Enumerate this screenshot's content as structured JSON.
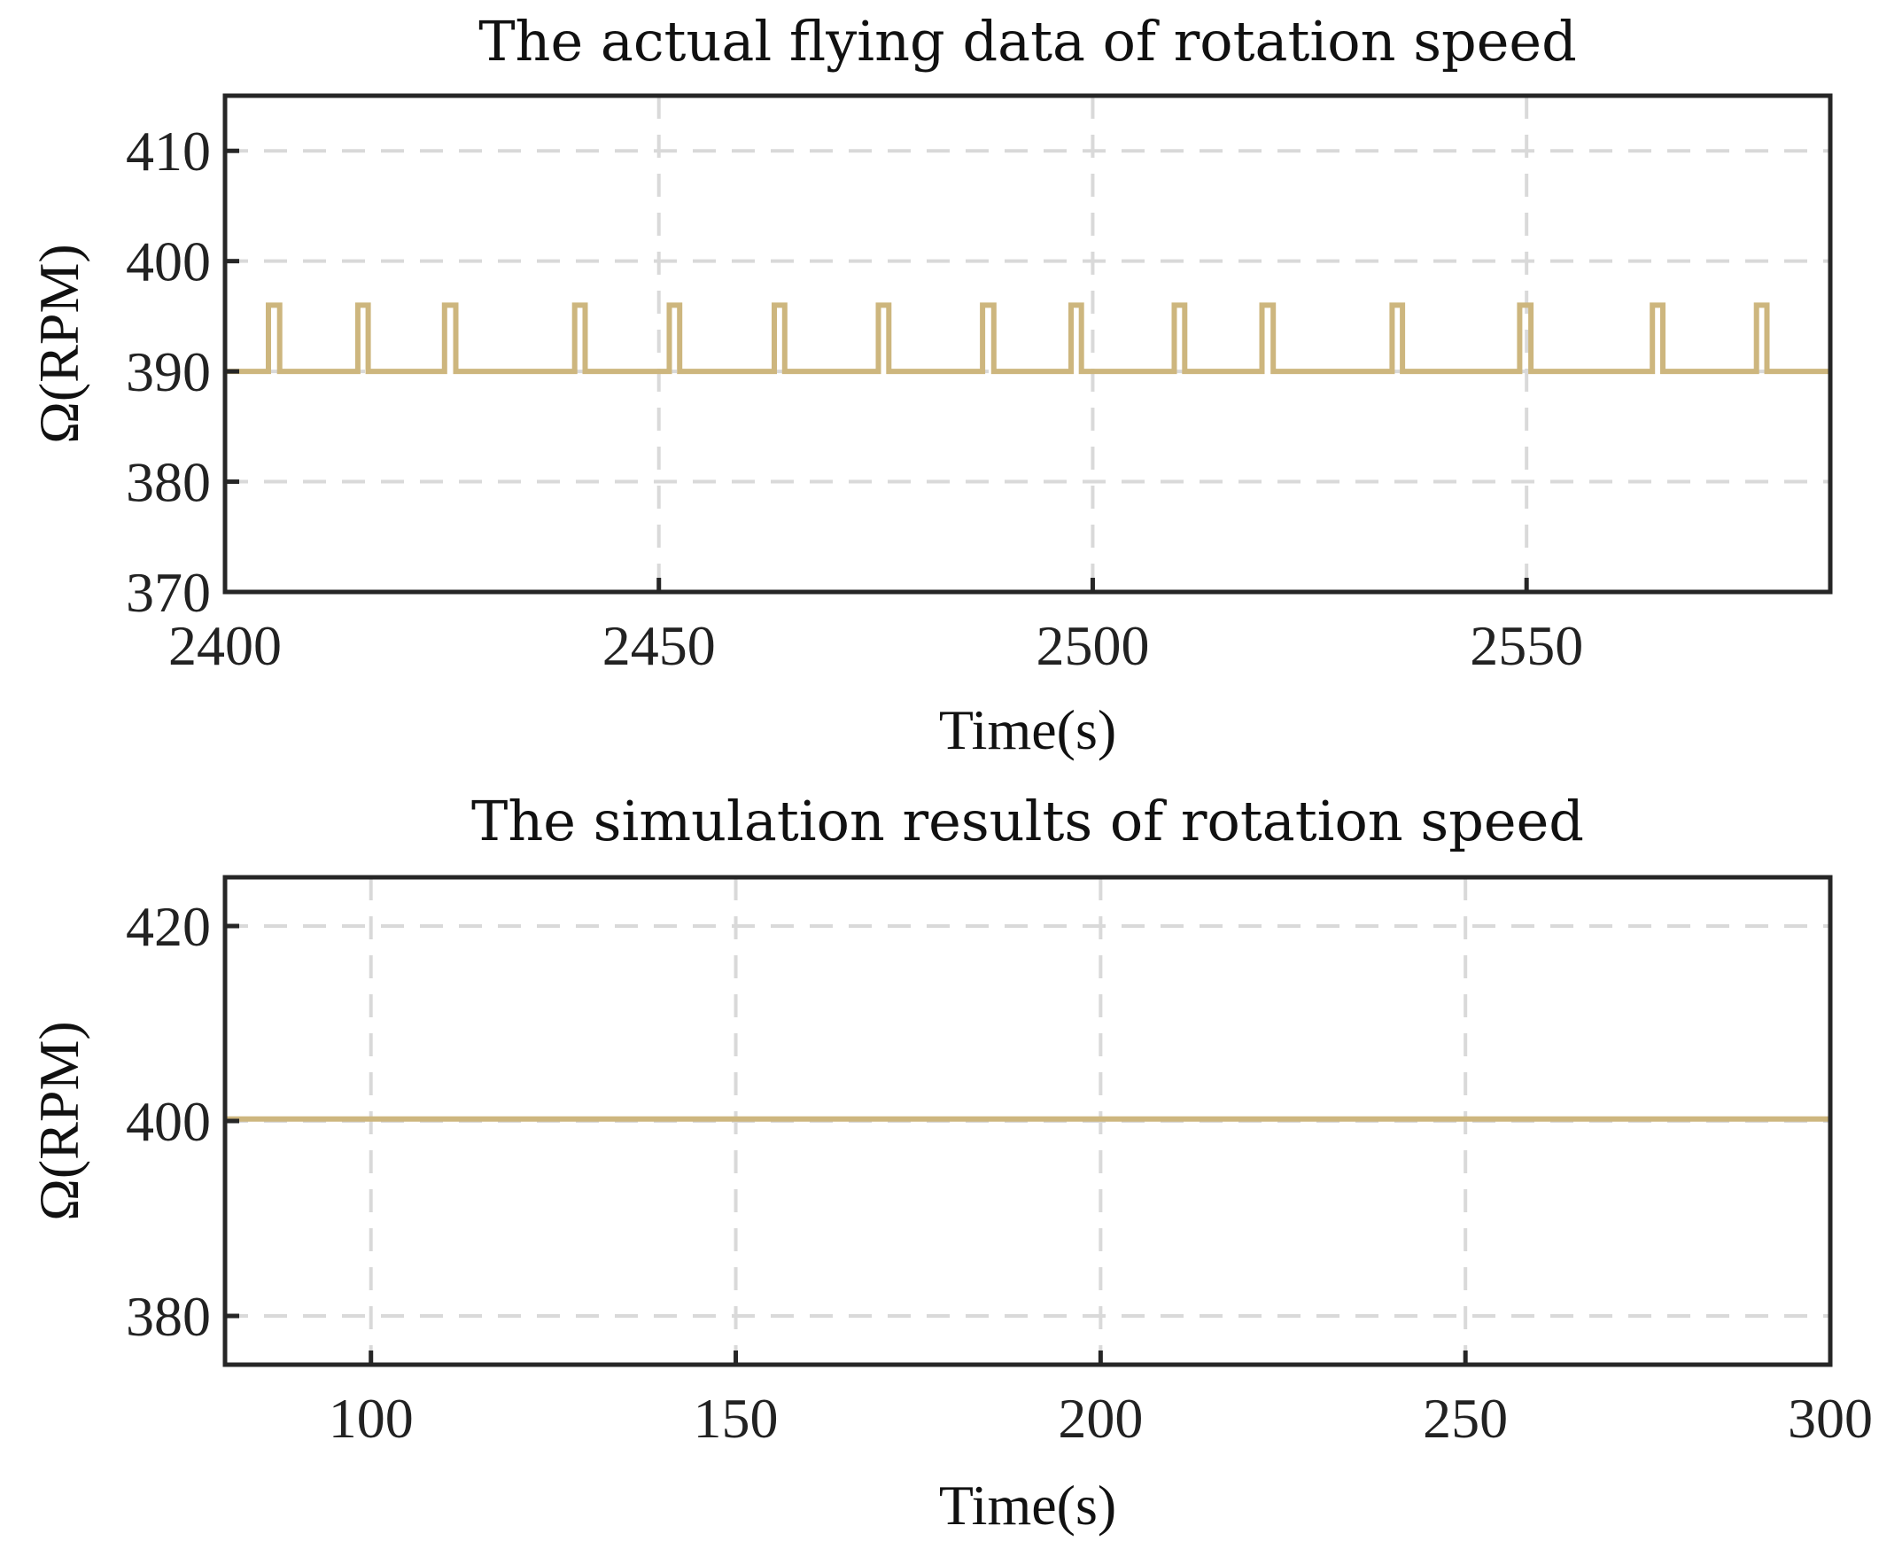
{
  "series_color": "#CDB67E",
  "chart_data": [
    {
      "type": "line",
      "title": "The actual flying data of rotation speed",
      "xlabel": "Time(s)",
      "ylabel": "Ω(RPM)",
      "xlim": [
        2400,
        2585
      ],
      "ylim": [
        370,
        415
      ],
      "xticks": [
        2400,
        2450,
        2500,
        2550
      ],
      "yticks": [
        370,
        380,
        390,
        400,
        410
      ],
      "grid": true,
      "series": [
        {
          "name": "rotation speed",
          "baseline": 390,
          "peak": 396,
          "pulses": [
            [
              2405.0,
              2406.3
            ],
            [
              2415.3,
              2416.5
            ],
            [
              2425.3,
              2426.6
            ],
            [
              2440.3,
              2441.5
            ],
            [
              2451.2,
              2452.4
            ],
            [
              2463.3,
              2464.5
            ],
            [
              2475.3,
              2476.5
            ],
            [
              2487.3,
              2488.6
            ],
            [
              2497.5,
              2498.7
            ],
            [
              2509.4,
              2510.6
            ],
            [
              2519.5,
              2520.8
            ],
            [
              2534.5,
              2535.7
            ],
            [
              2549.2,
              2550.5
            ],
            [
              2564.5,
              2565.7
            ],
            [
              2576.5,
              2577.7
            ]
          ]
        }
      ]
    },
    {
      "type": "line",
      "title": "The simulation results of rotation speed",
      "xlabel": "Time(s)",
      "ylabel": "Ω(RPM)",
      "xlim": [
        80,
        300
      ],
      "ylim": [
        375,
        425
      ],
      "xticks": [
        100,
        150,
        200,
        250,
        300
      ],
      "yticks": [
        380,
        400,
        420
      ],
      "grid": true,
      "series": [
        {
          "name": "rotation speed",
          "x": [
            80,
            300
          ],
          "y": [
            400.2,
            400.2
          ]
        }
      ]
    }
  ]
}
